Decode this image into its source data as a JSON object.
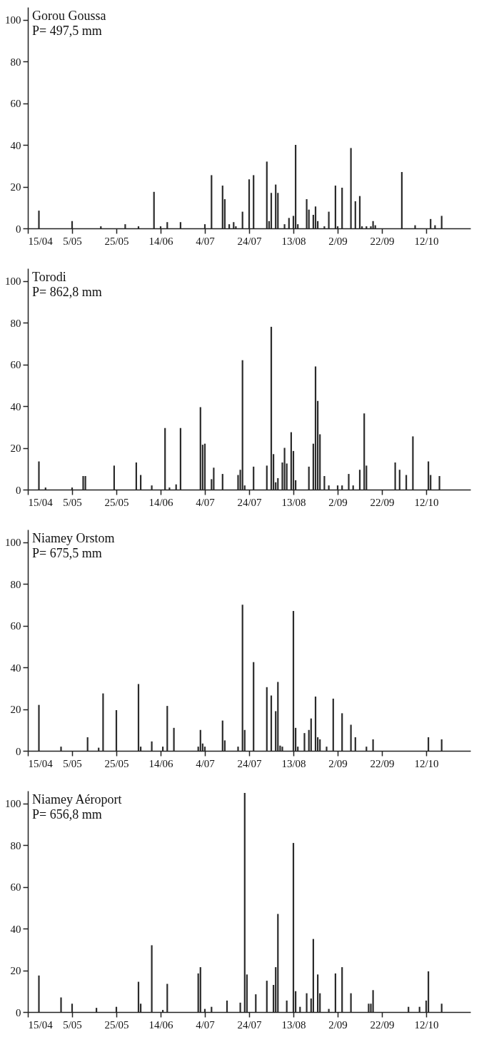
{
  "chart_data": [
    {
      "type": "bar",
      "title": "Gorou Goussa",
      "subtitle": "P= 497,5 mm",
      "color": "#2b2b2b",
      "xlim": [
        "--04-15",
        "--11-01"
      ],
      "ylim": [
        0,
        106
      ],
      "yticks": [
        0,
        20,
        40,
        60,
        80,
        100
      ],
      "xticks": [
        {
          "value": "--04-15",
          "label": "15/04"
        },
        {
          "value": "--05-05",
          "label": "5/05"
        },
        {
          "value": "--05-25",
          "label": "25/05"
        },
        {
          "value": "--06-14",
          "label": "14/06"
        },
        {
          "value": "--07-04",
          "label": "4/07"
        },
        {
          "value": "--07-24",
          "label": "24/07"
        },
        {
          "value": "--08-13",
          "label": "13/08"
        },
        {
          "value": "--09-02",
          "label": "2/09"
        },
        {
          "value": "--09-22",
          "label": "22/09"
        },
        {
          "value": "--10-12",
          "label": "12/10"
        }
      ],
      "x": [
        "--04-20",
        "--05-05",
        "--05-18",
        "--05-29",
        "--06-04",
        "--06-11",
        "--06-14",
        "--06-17",
        "--06-23",
        "--07-04",
        "--07-07",
        "--07-12",
        "--07-13",
        "--07-15",
        "--07-17",
        "--07-18",
        "--07-21",
        "--07-24",
        "--07-26",
        "--08-01",
        "--08-02",
        "--08-03",
        "--08-05",
        "--08-06",
        "--08-09",
        "--08-11",
        "--08-13",
        "--08-14",
        "--08-15",
        "--08-19",
        "--08-20",
        "--08-22",
        "--08-23",
        "--08-24",
        "--08-27",
        "--08-29",
        "--09-01",
        "--09-02",
        "--09-04",
        "--09-08",
        "--09-10",
        "--09-12",
        "--09-13",
        "--09-15",
        "--09-17",
        "--09-18",
        "--09-19",
        "--10-01",
        "--10-07",
        "--10-14",
        "--10-16",
        "--10-19"
      ],
      "values": [
        8.5,
        3.5,
        1,
        2,
        1,
        17.5,
        1,
        3,
        3,
        2,
        25.5,
        20.5,
        14,
        2,
        3,
        1,
        8,
        23.5,
        25.5,
        32,
        3.5,
        17,
        21,
        17,
        2,
        5,
        6,
        40,
        2,
        14,
        9,
        6.5,
        10.5,
        3.5,
        1,
        8,
        20.5,
        1,
        19.5,
        38.5,
        13,
        15.5,
        1,
        1,
        1,
        3.5,
        1.5,
        27,
        1.5,
        4.5,
        1.5,
        6
      ]
    },
    {
      "type": "bar",
      "title": "Torodi",
      "subtitle": "P= 862,8 mm",
      "color": "#2b2b2b",
      "xlim": [
        "--04-15",
        "--11-01"
      ],
      "ylim": [
        0,
        106
      ],
      "yticks": [
        0,
        20,
        40,
        60,
        80,
        100
      ],
      "xticks": [
        {
          "value": "--04-15",
          "label": "15/04"
        },
        {
          "value": "--05-05",
          "label": "5/05"
        },
        {
          "value": "--05-25",
          "label": "25/05"
        },
        {
          "value": "--06-14",
          "label": "14/06"
        },
        {
          "value": "--07-04",
          "label": "4/07"
        },
        {
          "value": "--07-24",
          "label": "24/07"
        },
        {
          "value": "--08-13",
          "label": "13/08"
        },
        {
          "value": "--09-02",
          "label": "2/09"
        },
        {
          "value": "--09-22",
          "label": "22/09"
        },
        {
          "value": "--10-12",
          "label": "12/10"
        }
      ],
      "x": [
        "--04-20",
        "--04-23",
        "--05-05",
        "--05-10",
        "--05-11",
        "--05-24",
        "--06-03",
        "--06-05",
        "--06-10",
        "--06-16",
        "--06-18",
        "--06-21",
        "--06-23",
        "--07-02",
        "--07-03",
        "--07-04",
        "--07-07",
        "--07-08",
        "--07-12",
        "--07-19",
        "--07-20",
        "--07-21",
        "--07-22",
        "--07-26",
        "--08-01",
        "--08-03",
        "--08-04",
        "--08-05",
        "--08-06",
        "--08-08",
        "--08-09",
        "--08-10",
        "--08-12",
        "--08-13",
        "--08-14",
        "--08-20",
        "--08-22",
        "--08-23",
        "--08-24",
        "--08-25",
        "--08-27",
        "--08-29",
        "--09-02",
        "--09-04",
        "--09-07",
        "--09-09",
        "--09-12",
        "--09-14",
        "--09-15",
        "--09-28",
        "--09-30",
        "--10-03",
        "--10-06",
        "--10-13",
        "--10-14",
        "--10-18"
      ],
      "values": [
        13.5,
        1,
        1,
        6.5,
        6.5,
        11.5,
        13,
        7,
        2,
        29.5,
        1,
        2.5,
        29.5,
        39.5,
        21.5,
        22,
        5,
        10.5,
        7.5,
        7,
        9.5,
        62,
        2,
        11,
        11.5,
        78,
        17,
        3.5,
        5.5,
        13,
        20,
        12.5,
        27.5,
        18.5,
        4.5,
        11,
        22,
        59,
        42.5,
        26.5,
        6.5,
        2,
        2,
        2,
        7.5,
        2,
        9.5,
        36.5,
        11.5,
        13,
        9.5,
        7,
        25.5,
        13.5,
        7,
        6.5
      ]
    },
    {
      "type": "bar",
      "title": "Niamey Orstom",
      "subtitle": "P= 675,5 mm",
      "color": "#2b2b2b",
      "xlim": [
        "--04-15",
        "--11-01"
      ],
      "ylim": [
        0,
        106
      ],
      "yticks": [
        0,
        20,
        40,
        60,
        80,
        100
      ],
      "xticks": [
        {
          "value": "--04-15",
          "label": "15/04"
        },
        {
          "value": "--05-05",
          "label": "5/05"
        },
        {
          "value": "--05-25",
          "label": "25/05"
        },
        {
          "value": "--06-14",
          "label": "14/06"
        },
        {
          "value": "--07-04",
          "label": "4/07"
        },
        {
          "value": "--07-24",
          "label": "24/07"
        },
        {
          "value": "--08-13",
          "label": "13/08"
        },
        {
          "value": "--09-02",
          "label": "2/09"
        },
        {
          "value": "--09-22",
          "label": "22/09"
        },
        {
          "value": "--10-12",
          "label": "12/10"
        }
      ],
      "x": [
        "--04-20",
        "--04-30",
        "--05-12",
        "--05-17",
        "--05-19",
        "--05-25",
        "--06-04",
        "--06-05",
        "--06-10",
        "--06-15",
        "--06-17",
        "--06-20",
        "--07-01",
        "--07-02",
        "--07-03",
        "--07-04",
        "--07-12",
        "--07-13",
        "--07-19",
        "--07-21",
        "--07-22",
        "--07-26",
        "--08-01",
        "--08-03",
        "--08-05",
        "--08-06",
        "--08-07",
        "--08-08",
        "--08-13",
        "--08-14",
        "--08-15",
        "--08-18",
        "--08-20",
        "--08-21",
        "--08-23",
        "--08-24",
        "--08-25",
        "--08-28",
        "--08-31",
        "--09-04",
        "--09-08",
        "--09-10",
        "--09-15",
        "--09-18",
        "--10-13",
        "--10-19"
      ],
      "values": [
        22,
        2,
        6.5,
        1.5,
        27.5,
        19.5,
        32,
        2,
        4.5,
        2,
        21.5,
        11,
        2,
        10,
        3.5,
        2,
        14.5,
        5,
        2,
        70,
        10,
        42.5,
        30.5,
        26.5,
        19,
        33,
        2.5,
        2,
        67,
        11,
        2,
        8.5,
        10,
        15.5,
        26,
        6.5,
        5.5,
        2,
        25,
        18,
        12.5,
        6.5,
        2,
        5.5,
        6.5,
        5.5
      ]
    },
    {
      "type": "bar",
      "title": "Niamey Aéroport",
      "subtitle": "P= 656,8 mm",
      "color": "#2b2b2b",
      "xlim": [
        "--04-15",
        "--11-01"
      ],
      "ylim": [
        0,
        106
      ],
      "yticks": [
        0,
        20,
        40,
        60,
        80,
        100
      ],
      "xticks": [
        {
          "value": "--04-15",
          "label": "15/04"
        },
        {
          "value": "--05-05",
          "label": "5/05"
        },
        {
          "value": "--05-25",
          "label": "25/05"
        },
        {
          "value": "--06-14",
          "label": "14/06"
        },
        {
          "value": "--07-04",
          "label": "4/07"
        },
        {
          "value": "--07-24",
          "label": "24/07"
        },
        {
          "value": "--08-13",
          "label": "13/08"
        },
        {
          "value": "--09-02",
          "label": "2/09"
        },
        {
          "value": "--09-22",
          "label": "22/09"
        },
        {
          "value": "--10-12",
          "label": "12/10"
        }
      ],
      "x": [
        "--04-20",
        "--04-30",
        "--05-05",
        "--05-16",
        "--05-25",
        "--06-04",
        "--06-05",
        "--06-10",
        "--06-15",
        "--06-17",
        "--07-01",
        "--07-02",
        "--07-04",
        "--07-07",
        "--07-14",
        "--07-20",
        "--07-22",
        "--07-23",
        "--07-27",
        "--08-01",
        "--08-04",
        "--08-05",
        "--08-06",
        "--08-10",
        "--08-13",
        "--08-14",
        "--08-16",
        "--08-19",
        "--08-21",
        "--08-22",
        "--08-24",
        "--08-25",
        "--08-29",
        "--09-01",
        "--09-04",
        "--09-08",
        "--09-16",
        "--09-17",
        "--09-18",
        "--10-04",
        "--10-09",
        "--10-12",
        "--10-13",
        "--10-19"
      ],
      "values": [
        17.5,
        7,
        4,
        2,
        2.5,
        14.5,
        4,
        32,
        1,
        13.5,
        18.5,
        21.5,
        1.5,
        2.5,
        5.5,
        4.5,
        105,
        18,
        8.5,
        15,
        13,
        21.5,
        47,
        5.5,
        81,
        10,
        2.5,
        9,
        6.5,
        35,
        18,
        9,
        1.5,
        18.5,
        21.5,
        9,
        4,
        4,
        10.5,
        2.5,
        2.5,
        5.5,
        19.5,
        4
      ]
    }
  ]
}
